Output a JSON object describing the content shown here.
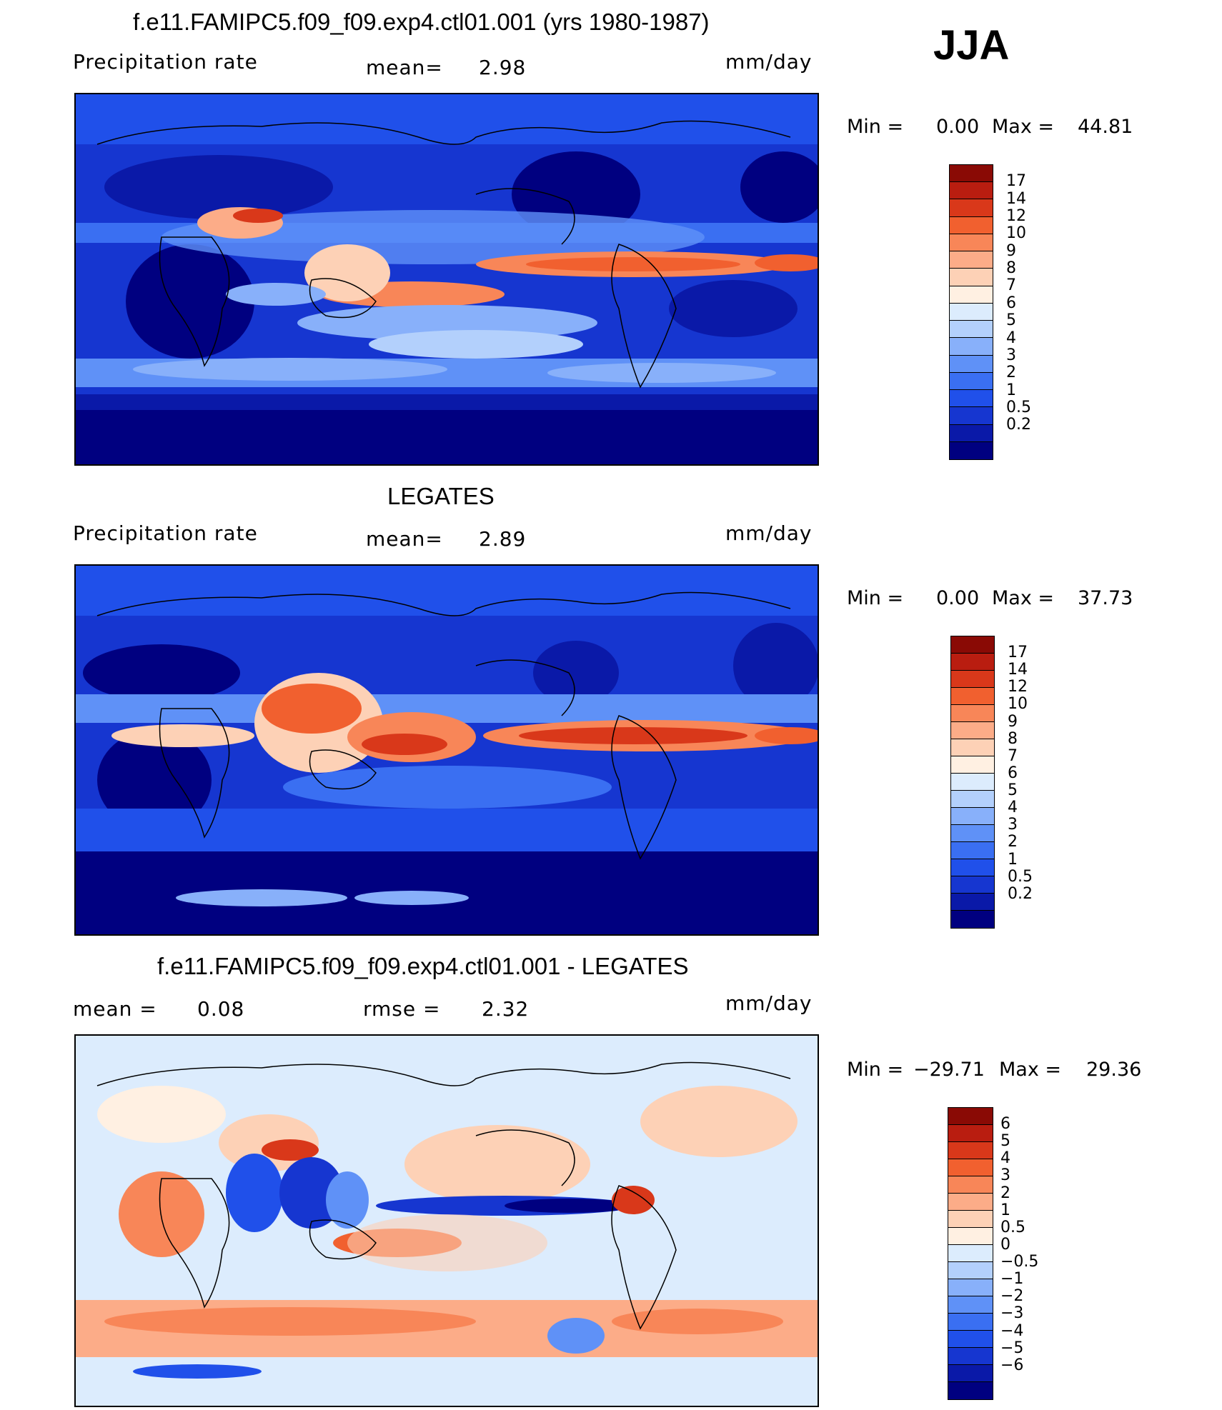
{
  "season": "JJA",
  "colors": {
    "precip": [
      "#000080",
      "#0a19a8",
      "#1636d0",
      "#2050ea",
      "#3a6ff2",
      "#5f91f7",
      "#88b0fa",
      "#b3d0fc",
      "#dcecfd",
      "#fff0e2",
      "#fdd1b6",
      "#fcac88",
      "#f88658",
      "#f1602f",
      "#d9381a",
      "#b91d10",
      "#8a0a05"
    ],
    "diff": [
      "#000080",
      "#0a19a8",
      "#1636d0",
      "#2050ea",
      "#3a6ff2",
      "#5f91f7",
      "#88b0fa",
      "#b3d0fc",
      "#dcecfd",
      "#fff0e2",
      "#fdd1b6",
      "#fcac88",
      "#f88658",
      "#f1602f",
      "#d9381a",
      "#b91d10",
      "#8a0a05"
    ]
  },
  "panel1": {
    "title": "f.e11.FAMIPC5.f09_f09.exp4.ctl01.001 (yrs 1980-1987)",
    "field": "Precipitation  rate",
    "mean_label": "mean=",
    "mean_value": "2.98",
    "units": "mm/day",
    "min_label": "Min  =",
    "min_value": "0.00",
    "max_label": "Max  =",
    "max_value": "44.81",
    "ticks": [
      "17",
      "14",
      "12",
      "10",
      "9",
      "8",
      "7",
      "6",
      "5",
      "4",
      "3",
      "2",
      "1",
      "0.5",
      "0.2"
    ]
  },
  "panel2": {
    "title": "LEGATES",
    "field": "Precipitation  rate",
    "mean_label": "mean=",
    "mean_value": "2.89",
    "units": "mm/day",
    "min_label": "Min  =",
    "min_value": "0.00",
    "max_label": "Max  =",
    "max_value": "37.73",
    "ticks": [
      "17",
      "14",
      "12",
      "10",
      "9",
      "8",
      "7",
      "6",
      "5",
      "4",
      "3",
      "2",
      "1",
      "0.5",
      "0.2"
    ]
  },
  "panel3": {
    "title": "f.e11.FAMIPC5.f09_f09.exp4.ctl01.001 - LEGATES",
    "mean_label": "mean  =",
    "mean_value": "0.08",
    "rmse_label": "rmse  =",
    "rmse_value": "2.32",
    "units": "mm/day",
    "min_label": "Min  =",
    "min_value": "−29.71",
    "max_label": "Max  =",
    "max_value": "29.36",
    "ticks": [
      "6",
      "5",
      "4",
      "3",
      "2",
      "1",
      "0.5",
      "0",
      "−0.5",
      "−1",
      "−2",
      "−3",
      "−4",
      "−5",
      "−6"
    ]
  }
}
